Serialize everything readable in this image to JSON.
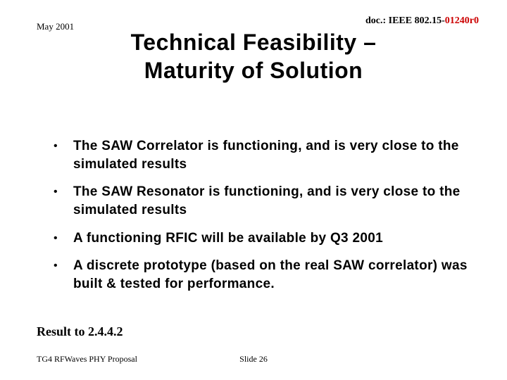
{
  "header": {
    "date": "May 2001",
    "doc_prefix": "doc.: IEEE 802.15-",
    "doc_suffix": "01240r0"
  },
  "title_line1": "Technical Feasibility –",
  "title_line2": "Maturity of Solution",
  "bullets": [
    "The SAW Correlator is functioning, and is very close to the simulated results",
    "The SAW Resonator is functioning, and is very close to the simulated results",
    "A functioning RFIC will be available by Q3 2001",
    "A discrete prototype (based on the real SAW correlator) was built & tested for performance."
  ],
  "result": "Result to 2.4.4.2",
  "footer": {
    "left": "TG4 RFWaves PHY Proposal",
    "center": "Slide 26"
  },
  "colors": {
    "bg": "#ffffff",
    "text": "#000000",
    "accent_red": "#cc0000"
  },
  "fonts": {
    "title_pt": 32,
    "bullet_pt": 19,
    "header_pt": 13,
    "footer_pt": 12,
    "result_pt": 18
  }
}
